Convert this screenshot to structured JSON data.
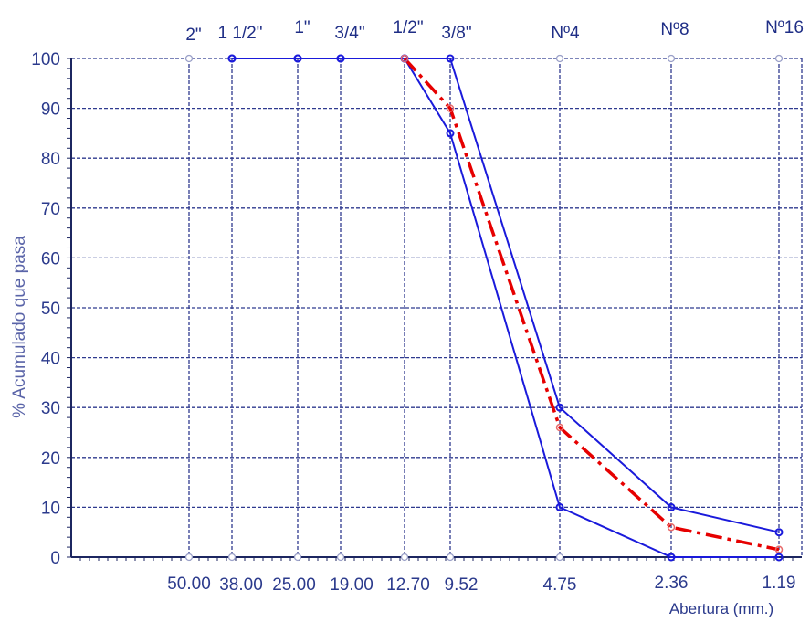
{
  "chart_data": {
    "type": "line",
    "title": "",
    "xlabel": "Abertura (mm.)",
    "ylabel": "% Acumulado que pasa",
    "ylim": [
      0,
      100
    ],
    "yticks": [
      0,
      10,
      20,
      30,
      40,
      50,
      60,
      70,
      80,
      90,
      100
    ],
    "grid": true,
    "sieves": [
      {
        "size": "2\"",
        "opening": 50.0,
        "label": "50.00"
      },
      {
        "size": "1 1/2\"",
        "opening": 38.0,
        "label": "38.00"
      },
      {
        "size": "1\"",
        "opening": 25.0,
        "label": "25.00"
      },
      {
        "size": "3/4\"",
        "opening": 19.0,
        "label": "19.00"
      },
      {
        "size": "1/2\"",
        "opening": 12.7,
        "label": "12.70"
      },
      {
        "size": "3/8\"",
        "opening": 9.52,
        "label": "9.52"
      },
      {
        "size": "Nº4",
        "opening": 4.75,
        "label": "4.75"
      },
      {
        "size": "Nº8",
        "opening": 2.36,
        "label": "2.36"
      },
      {
        "size": "Nº16",
        "opening": 1.19,
        "label": "1.19"
      }
    ],
    "series": [
      {
        "color": "#1a1adb",
        "style": "solid",
        "points": [
          [
            38.0,
            100
          ],
          [
            25.0,
            100
          ],
          [
            19.0,
            100
          ],
          [
            12.7,
            100
          ],
          [
            9.52,
            100
          ],
          [
            4.75,
            30
          ],
          [
            2.36,
            10
          ],
          [
            1.19,
            5
          ]
        ]
      },
      {
        "color": "#1a1adb",
        "style": "solid",
        "points": [
          [
            38.0,
            100
          ],
          [
            25.0,
            100
          ],
          [
            19.0,
            100
          ],
          [
            12.7,
            100
          ],
          [
            9.52,
            85
          ],
          [
            4.75,
            10
          ],
          [
            2.36,
            0
          ],
          [
            1.19,
            0
          ]
        ]
      },
      {
        "color": "#e60000",
        "style": "dash-dot",
        "points": [
          [
            12.7,
            100
          ],
          [
            9.52,
            90
          ],
          [
            4.75,
            26
          ],
          [
            2.36,
            6
          ],
          [
            1.19,
            1.5
          ]
        ]
      }
    ],
    "empty_markers": [
      [
        50.0,
        100
      ],
      [
        50.0,
        0
      ],
      [
        38.0,
        0
      ],
      [
        25.0,
        0
      ],
      [
        19.0,
        0
      ],
      [
        12.7,
        0
      ],
      [
        9.52,
        0
      ],
      [
        4.75,
        100
      ],
      [
        4.75,
        0
      ],
      [
        2.36,
        100
      ],
      [
        1.19,
        100
      ]
    ]
  },
  "colors": {
    "grid": "#2f3a8f",
    "axis": "#1c2660",
    "upper_limit": "#1a1adb",
    "lower_limit": "#1a1adb",
    "gradation": "#e60000",
    "marker_empty": "#9aa0c8"
  }
}
